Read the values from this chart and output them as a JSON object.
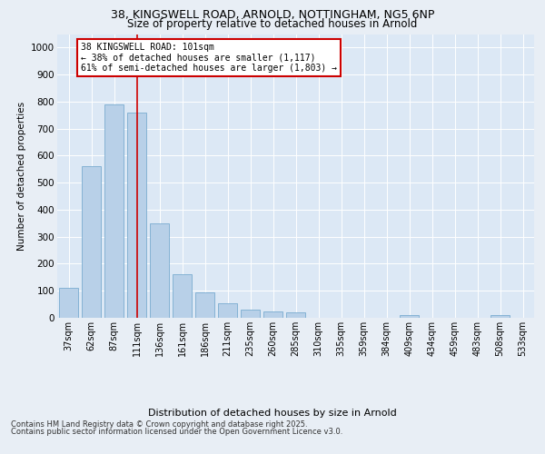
{
  "title_line1": "38, KINGSWELL ROAD, ARNOLD, NOTTINGHAM, NG5 6NP",
  "title_line2": "Size of property relative to detached houses in Arnold",
  "xlabel": "Distribution of detached houses by size in Arnold",
  "ylabel": "Number of detached properties",
  "categories": [
    "37sqm",
    "62sqm",
    "87sqm",
    "111sqm",
    "136sqm",
    "161sqm",
    "186sqm",
    "211sqm",
    "235sqm",
    "260sqm",
    "285sqm",
    "310sqm",
    "335sqm",
    "359sqm",
    "384sqm",
    "409sqm",
    "434sqm",
    "459sqm",
    "483sqm",
    "508sqm",
    "533sqm"
  ],
  "values": [
    110,
    560,
    790,
    760,
    350,
    160,
    95,
    55,
    30,
    25,
    20,
    0,
    0,
    0,
    0,
    10,
    0,
    0,
    0,
    10,
    0
  ],
  "bar_color": "#b8d0e8",
  "bar_edgecolor": "#7aacd0",
  "vline_x": 3.0,
  "vline_color": "#cc0000",
  "annotation_text": "38 KINGSWELL ROAD: 101sqm\n← 38% of detached houses are smaller (1,117)\n61% of semi-detached houses are larger (1,803) →",
  "annotation_box_color": "#cc0000",
  "annotation_text_color": "#000000",
  "ylim": [
    0,
    1050
  ],
  "yticks": [
    0,
    100,
    200,
    300,
    400,
    500,
    600,
    700,
    800,
    900,
    1000
  ],
  "bg_color": "#e8eef5",
  "plot_bg_color": "#dce8f5",
  "footer_line1": "Contains HM Land Registry data © Crown copyright and database right 2025.",
  "footer_line2": "Contains public sector information licensed under the Open Government Licence v3.0.",
  "grid_color": "#ffffff"
}
